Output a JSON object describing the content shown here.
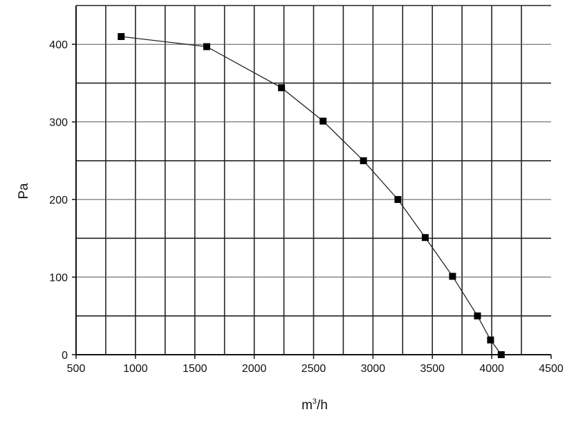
{
  "chart_data": {
    "type": "line",
    "title": "",
    "xlabel": "m",
    "xlabel_sup": "3",
    "xlabel_suffix": "/h",
    "ylabel": "Pa",
    "xlim": [
      500,
      4500
    ],
    "ylim": [
      0,
      450
    ],
    "x_ticks": [
      "500",
      "1000",
      "1500",
      "2000",
      "2500",
      "3000",
      "3500",
      "4000",
      "4500"
    ],
    "y_ticks": [
      "0",
      "100",
      "200",
      "300",
      "400"
    ],
    "grid": true,
    "legend": "none",
    "series": [
      {
        "x": [
          880,
          1600,
          2230,
          2580,
          2920,
          3210,
          3440,
          3670,
          3880,
          3990,
          4080
        ],
        "y": [
          410,
          397,
          344,
          301,
          250,
          200,
          151,
          101,
          50,
          19,
          0
        ]
      }
    ],
    "colors": {
      "line": "#222222",
      "marker": "#000000",
      "grid": "#222222"
    }
  }
}
